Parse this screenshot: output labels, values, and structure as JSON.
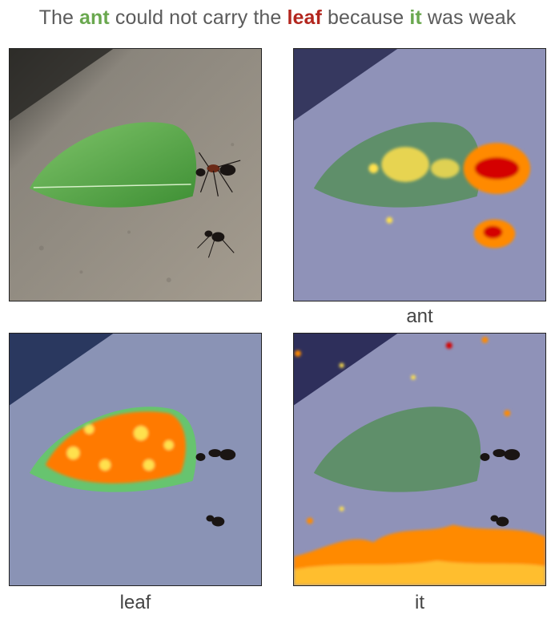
{
  "caption": {
    "parts": [
      "The",
      "ant",
      "could not carry the",
      "leaf",
      "because",
      "it",
      "was weak"
    ]
  },
  "panels": [
    {
      "label": "",
      "overlay": "none"
    },
    {
      "label": "ant",
      "overlay": "heatmap-ant"
    },
    {
      "label": "leaf",
      "overlay": "heatmap-leaf"
    },
    {
      "label": "it",
      "overlay": "heatmap-it"
    }
  ],
  "colors": {
    "ant_word": "#6aa84f",
    "leaf_word": "#b3261e",
    "it_word": "#6aa84f",
    "heat_low": "#ffe14d",
    "heat_mid": "#ff8a00",
    "heat_high": "#d40000",
    "tint": "#7a7fc0"
  }
}
